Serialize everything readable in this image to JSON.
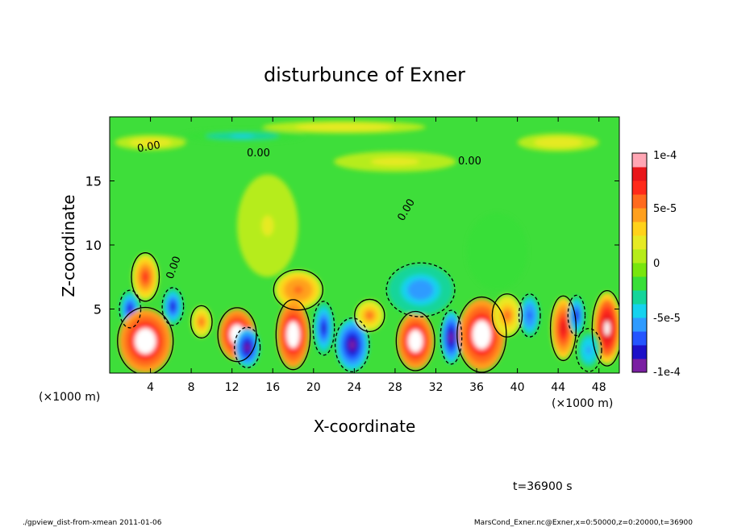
{
  "chart_data": {
    "type": "heatmap",
    "title": "disturbunce of Exner",
    "xlabel": "X-coordinate",
    "ylabel": "Z-coordinate",
    "x_unit_label": "(×1000 m)",
    "y_unit_label": "(×1000 m)",
    "xlim": [
      0,
      50
    ],
    "ylim": [
      0,
      20
    ],
    "x_ticks": [
      4,
      8,
      12,
      16,
      20,
      24,
      28,
      32,
      36,
      40,
      44,
      48
    ],
    "y_ticks": [
      5,
      10,
      15
    ],
    "colorbar": {
      "min": -0.0001,
      "max": 0.0001,
      "tick_labels": [
        "1e-4",
        "5e-5",
        "0",
        "-5e-5",
        "-1e-4"
      ],
      "colors": [
        "#7a1fa2",
        "#1c10c8",
        "#2455ff",
        "#2f9bff",
        "#15d2ee",
        "#14d59a",
        "#38df38",
        "#78e60e",
        "#b6ec1a",
        "#e6ea24",
        "#ffd21a",
        "#ffa01e",
        "#ff6a1e",
        "#ff2a1a",
        "#e8161a",
        "#ffa6b4"
      ]
    },
    "contour_labels": [
      "0.00",
      "0.00",
      "0.00",
      "0.00",
      "0.00"
    ],
    "time_label": "t=36900 s",
    "footer_left": "./gpview_dist-from-xmean  2011-01-06",
    "footer_right": "MarsCond_Exner.nc@Exner,x=0:50000,z=0:20000,t=36900",
    "blobs": [
      {
        "x": 3.5,
        "z": 7.5,
        "rx": 1.3,
        "rz": 1.8,
        "v": 8e-05
      },
      {
        "x": 2.0,
        "z": 5.0,
        "rx": 1.0,
        "rz": 1.4,
        "v": -8e-05
      },
      {
        "x": 6.2,
        "z": 5.2,
        "rx": 1.0,
        "rz": 1.4,
        "v": -8e-05
      },
      {
        "x": 3.5,
        "z": 2.5,
        "rx": 2.6,
        "rz": 2.5,
        "v": 0.00012
      },
      {
        "x": 12.5,
        "z": 3.0,
        "rx": 1.8,
        "rz": 2.0,
        "v": 0.00012
      },
      {
        "x": 13.5,
        "z": 2.0,
        "rx": 1.2,
        "rz": 1.5,
        "v": -9e-05
      },
      {
        "x": 18.5,
        "z": 6.5,
        "rx": 2.3,
        "rz": 1.5,
        "v": 7e-05
      },
      {
        "x": 18.0,
        "z": 3.0,
        "rx": 1.6,
        "rz": 2.6,
        "v": 0.00012
      },
      {
        "x": 21.0,
        "z": 3.5,
        "rx": 1.0,
        "rz": 2.0,
        "v": -8e-05
      },
      {
        "x": 23.8,
        "z": 2.2,
        "rx": 1.6,
        "rz": 2.0,
        "v": -9e-05
      },
      {
        "x": 25.5,
        "z": 4.5,
        "rx": 1.4,
        "rz": 1.2,
        "v": 6e-05
      },
      {
        "x": 30.0,
        "z": 2.5,
        "rx": 1.8,
        "rz": 2.2,
        "v": 0.00012
      },
      {
        "x": 30.5,
        "z": 6.5,
        "rx": 3.2,
        "rz": 2.0,
        "v": -6e-05
      },
      {
        "x": 33.5,
        "z": 2.8,
        "rx": 1.0,
        "rz": 2.0,
        "v": -9e-05
      },
      {
        "x": 36.5,
        "z": 3.0,
        "rx": 2.3,
        "rz": 2.8,
        "v": 0.00012
      },
      {
        "x": 39.0,
        "z": 4.5,
        "rx": 1.4,
        "rz": 1.6,
        "v": 6e-05
      },
      {
        "x": 41.2,
        "z": 4.5,
        "rx": 1.0,
        "rz": 1.6,
        "v": -7e-05
      },
      {
        "x": 44.5,
        "z": 3.5,
        "rx": 1.2,
        "rz": 2.4,
        "v": 9e-05
      },
      {
        "x": 45.8,
        "z": 4.5,
        "rx": 0.8,
        "rz": 1.5,
        "v": -8e-05
      },
      {
        "x": 48.8,
        "z": 3.5,
        "rx": 1.4,
        "rz": 2.8,
        "v": 0.00011
      },
      {
        "x": 47.0,
        "z": 1.8,
        "rx": 1.2,
        "rz": 1.6,
        "v": -5e-05
      },
      {
        "x": 9.0,
        "z": 4.0,
        "rx": 1.0,
        "rz": 1.2,
        "v": 6e-05
      },
      {
        "x": 15.5,
        "z": 11.5,
        "rx": 3.0,
        "rz": 4.0,
        "v": 2e-05
      },
      {
        "x": 38.0,
        "z": 9.5,
        "rx": 3.0,
        "rz": 3.0,
        "v": -2e-05
      },
      {
        "x": 13.0,
        "z": 18.5,
        "rx": 6.0,
        "rz": 0.5,
        "v": -3.5e-05
      },
      {
        "x": 44.0,
        "z": 18.0,
        "rx": 4.0,
        "rz": 0.7,
        "v": 3e-05
      },
      {
        "x": 4.0,
        "z": 18.0,
        "rx": 3.5,
        "rz": 0.6,
        "v": 3.5e-05
      },
      {
        "x": 23.0,
        "z": 19.2,
        "rx": 8.0,
        "rz": 0.5,
        "v": 3e-05
      },
      {
        "x": 28.0,
        "z": 16.5,
        "rx": 6.0,
        "rz": 0.8,
        "v": 2.5e-05
      }
    ]
  }
}
